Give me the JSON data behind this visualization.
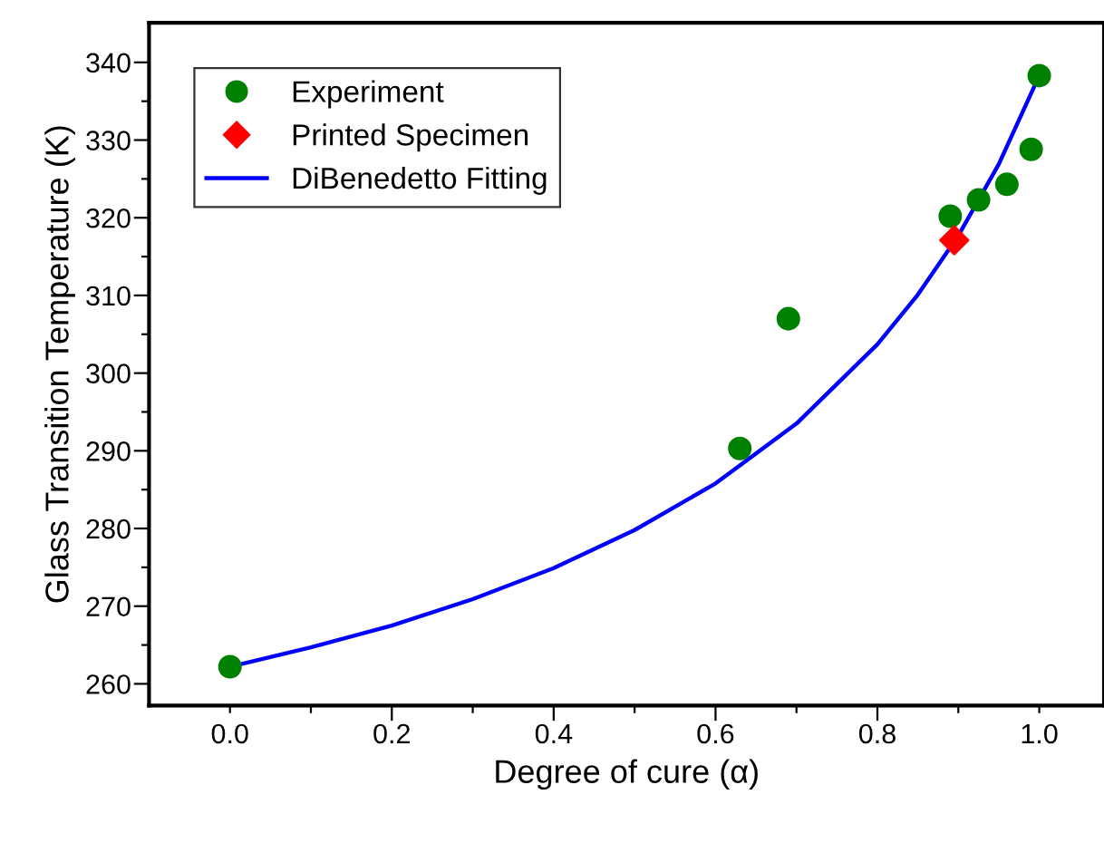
{
  "chart_data": {
    "type": "scatter",
    "xlabel": "Degree of cure (α)",
    "ylabel": "Glass Transition Temperature (K)",
    "xlim": [
      -0.1,
      1.08
    ],
    "ylim": [
      257.2,
      345.1
    ],
    "xticks": [
      {
        "value": 0,
        "label": "0.0"
      },
      {
        "value": 0.1,
        "label": null
      },
      0.2,
      {
        "value": 0.3,
        "label": null
      },
      0.4,
      {
        "value": 0.5,
        "label": null
      },
      0.6,
      {
        "value": 0.7,
        "label": null
      },
      0.8,
      {
        "value": 0.9,
        "label": null
      },
      {
        "value": 1,
        "label": "1.0"
      }
    ],
    "yticks": [
      260,
      {
        "value": 265,
        "label": null
      },
      270,
      {
        "value": 275,
        "label": null
      },
      280,
      {
        "value": 285,
        "label": null
      },
      290,
      {
        "value": 295,
        "label": null
      },
      300,
      {
        "value": 305,
        "label": null
      },
      310,
      {
        "value": 315,
        "label": null
      },
      320,
      {
        "value": 325,
        "label": null
      },
      330,
      {
        "value": 335,
        "label": null
      },
      340
    ],
    "legend": "top left",
    "grid": false,
    "series": [
      {
        "name": "Experiment",
        "marker": "circle",
        "color": "#008000",
        "x": [
          0.0,
          0.63,
          0.69,
          0.89,
          0.925,
          0.96,
          0.99,
          1.0
        ],
        "values": [
          262.2,
          290.3,
          307.0,
          320.2,
          322.3,
          324.3,
          328.8,
          338.3
        ]
      },
      {
        "name": "Printed Specimen",
        "marker": "diamond",
        "color": "#ff0000",
        "x": [
          0.895
        ],
        "values": [
          317.1
        ]
      },
      {
        "name": "DiBenedetto Fitting",
        "type": "line",
        "marker": "none",
        "line_style": "solid",
        "color": "#0000ff",
        "x": [
          0.0,
          0.1,
          0.2,
          0.3,
          0.4,
          0.5,
          0.6,
          0.7,
          0.8,
          0.85,
          0.9,
          0.95,
          1.0
        ],
        "values": [
          262.2,
          264.7,
          267.5,
          270.9,
          274.9,
          279.8,
          285.8,
          293.5,
          303.7,
          310.1,
          317.7,
          326.9,
          338.3
        ]
      }
    ]
  }
}
